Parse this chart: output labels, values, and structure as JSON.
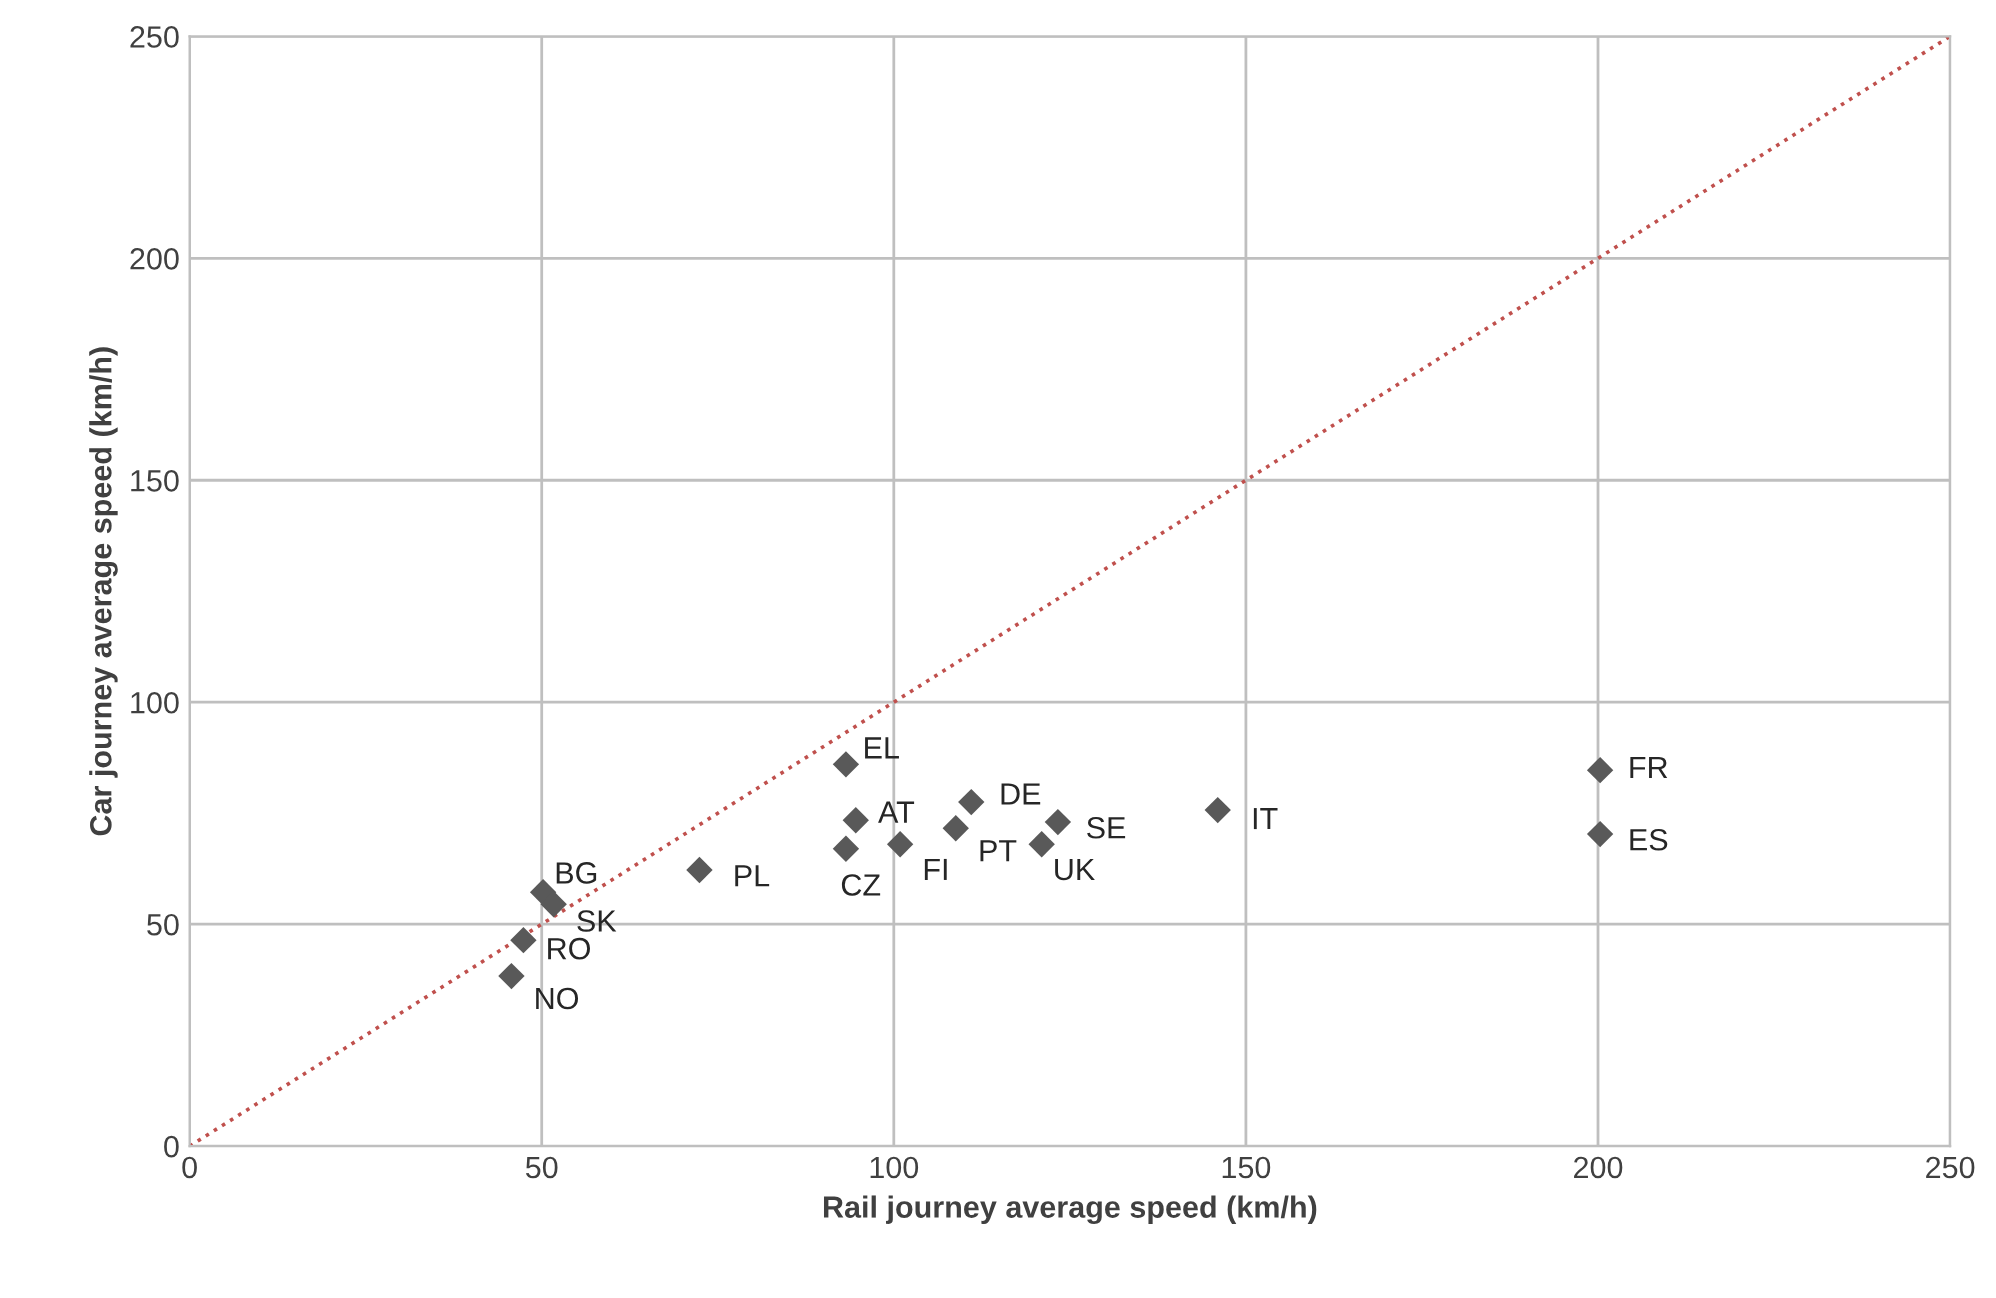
{
  "chart_data": {
    "type": "scatter",
    "xlabel": "Rail journey average speed (km/h)",
    "ylabel": "Car journey average speed (km/h)",
    "xlim": [
      0,
      250
    ],
    "ylim": [
      0,
      250
    ],
    "xticks": [
      0,
      50,
      100,
      150,
      200,
      250
    ],
    "yticks": [
      0,
      50,
      100,
      150,
      200,
      250
    ],
    "grid": true,
    "series": [
      {
        "color": "#595959",
        "marker": "diamond",
        "x": [
          93.2,
          94.6,
          93.2,
          100.9,
          111,
          108.8,
          123.3,
          121,
          146,
          200.3,
          200.3,
          72.4,
          50.2,
          51.7,
          47.4,
          45.7
        ],
        "values": [
          86,
          73.4,
          67,
          68,
          77.5,
          71.6,
          73,
          68,
          75.7,
          84.7,
          70.3,
          62.2,
          57.2,
          54.5,
          46.4,
          38.3
        ]
      },
      {
        "type": "line",
        "color": "#c0504d",
        "line_style": "dotted",
        "marker": "none",
        "x": [
          0,
          250
        ],
        "values": [
          0,
          250
        ]
      }
    ],
    "annotations": [
      {
        "text": "EL",
        "x": 93.2,
        "y": 86
      },
      {
        "text": "AT",
        "x": 94.6,
        "y": 73.4
      },
      {
        "text": "CZ",
        "x": 93.2,
        "y": 67
      },
      {
        "text": "FI",
        "x": 100.9,
        "y": 68
      },
      {
        "text": "DE",
        "x": 111,
        "y": 77.5
      },
      {
        "text": "PT",
        "x": 108.8,
        "y": 71.6
      },
      {
        "text": "SE",
        "x": 123.3,
        "y": 73
      },
      {
        "text": "UK",
        "x": 121,
        "y": 68
      },
      {
        "text": "IT",
        "x": 146,
        "y": 75.7
      },
      {
        "text": "FR",
        "x": 200.3,
        "y": 84.7
      },
      {
        "text": "ES",
        "x": 200.3,
        "y": 70.3
      },
      {
        "text": "PL",
        "x": 72.4,
        "y": 62.2
      },
      {
        "text": "BG",
        "x": 50.2,
        "y": 57.2
      },
      {
        "text": "SK",
        "x": 51.7,
        "y": 54.5
      },
      {
        "text": "RO",
        "x": 47.4,
        "y": 46.4
      },
      {
        "text": "NO",
        "x": 45.7,
        "y": 38.3
      }
    ]
  }
}
